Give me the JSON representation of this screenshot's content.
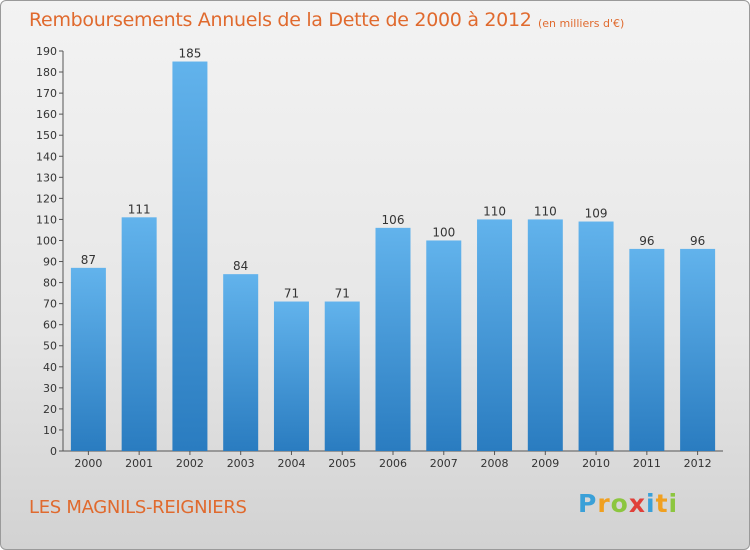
{
  "chart_data": {
    "type": "bar",
    "title": "Remboursements Annuels de la Dette de 2000 à 2012",
    "unit": "(en milliers d'€)",
    "categories": [
      "2000",
      "2001",
      "2002",
      "2003",
      "2004",
      "2005",
      "2006",
      "2007",
      "2008",
      "2009",
      "2010",
      "2011",
      "2012"
    ],
    "values": [
      87,
      111,
      185,
      84,
      71,
      71,
      106,
      100,
      110,
      110,
      109,
      96,
      96
    ],
    "ylim": [
      0,
      190
    ],
    "yticks": [
      0,
      10,
      20,
      30,
      40,
      50,
      60,
      70,
      80,
      90,
      100,
      110,
      120,
      130,
      140,
      150,
      160,
      170,
      180,
      190
    ],
    "grid": false,
    "bar_color": "#3d93d6"
  },
  "commune": "LES MAGNILS-REIGNIERS",
  "logo": {
    "text": "Proxiti",
    "letter_colors": [
      "#3aa0d8",
      "#f0a020",
      "#8cc63f",
      "#e0403a",
      "#3aa0d8",
      "#f0a020",
      "#8cc63f"
    ]
  },
  "colors": {
    "accent": "#e06a2e",
    "axis": "#555555",
    "label": "#333333"
  }
}
